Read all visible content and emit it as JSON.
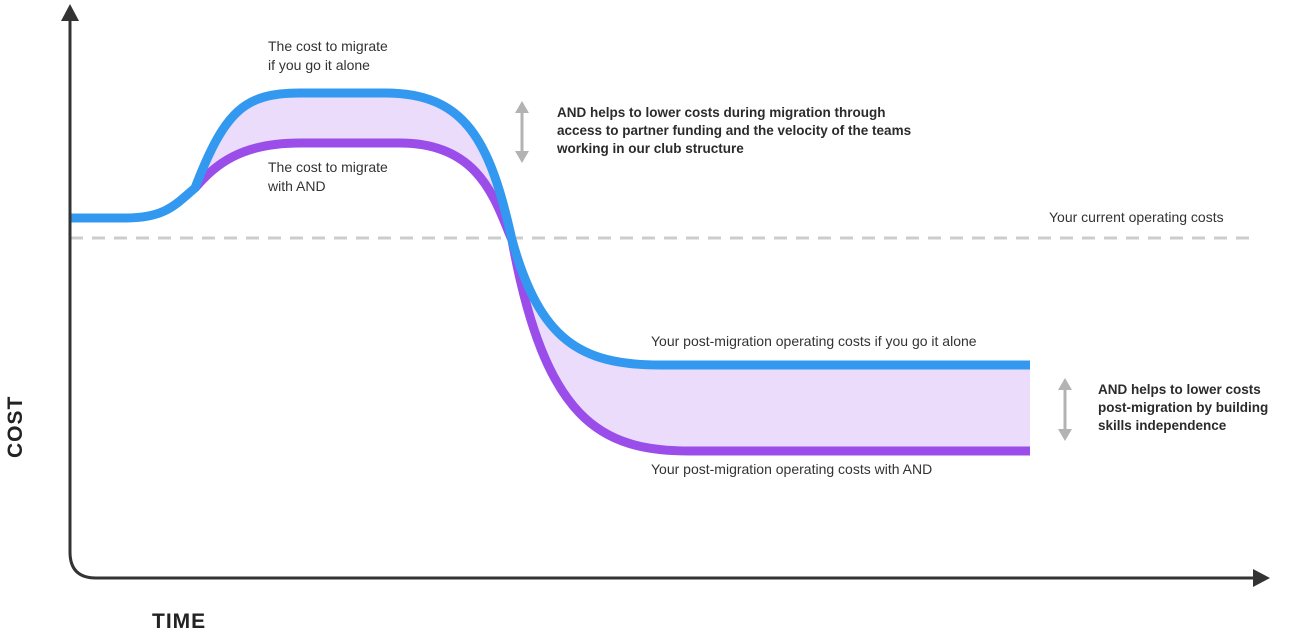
{
  "axes": {
    "y_title": "COST",
    "x_title": "TIME"
  },
  "labels": {
    "migrate_alone": "The cost to migrate\nif you go it alone",
    "migrate_with_and": "The cost to migrate\nwith AND",
    "current_costs": "Your current operating costs",
    "post_alone": "Your post-migration operating costs if you go it alone",
    "post_with_and": "Your post-migration operating costs with AND",
    "callout_migration": "AND helps to lower costs during migration through\naccess to partner funding and the velocity of the teams\nworking in our club structure",
    "callout_post": "AND helps to lower costs\npost-migration by building\nskills independence"
  },
  "colors": {
    "alone_line": "#3399f0",
    "with_and_line": "#9b4dea",
    "savings_fill": "#ebdcfb",
    "axis": "#333333",
    "baseline_dash": "#cccccc",
    "arrow_gray": "#b3b3b3"
  }
}
